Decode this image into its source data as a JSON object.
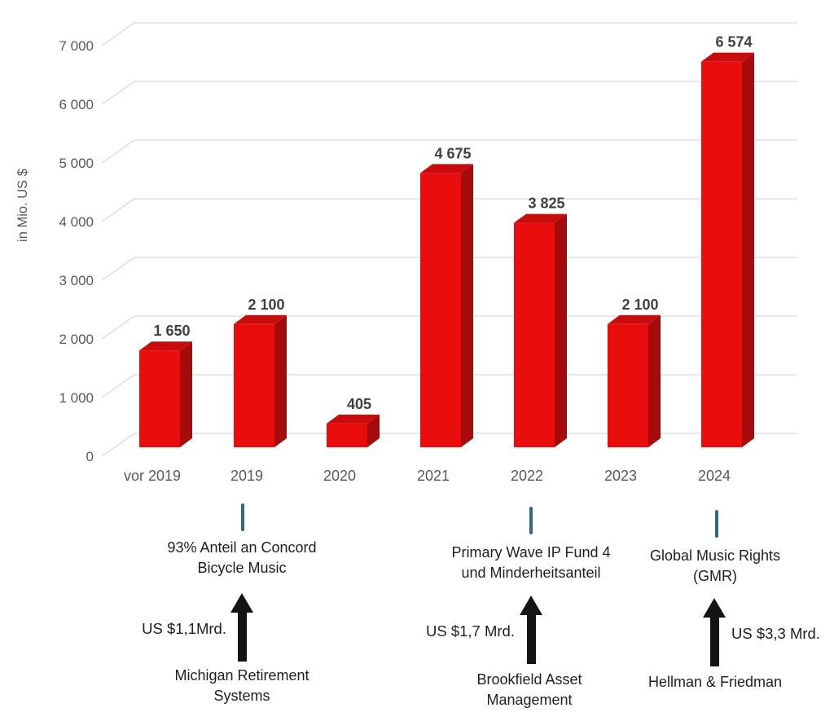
{
  "chart_data": {
    "type": "bar",
    "style": "3d",
    "title": "",
    "xlabel": "",
    "ylabel": "in Mio. US $",
    "categories": [
      "vor 2019",
      "2019",
      "2020",
      "2021",
      "2022",
      "2023",
      "2024"
    ],
    "values": [
      1650,
      2100,
      405,
      4675,
      3825,
      2100,
      6574
    ],
    "value_labels": [
      "1 650",
      "2 100",
      "405",
      "4 675",
      "3 825",
      "2 100",
      "6 574"
    ],
    "ylim": [
      0,
      7000
    ],
    "ytick_values": [
      0,
      1000,
      2000,
      3000,
      4000,
      5000,
      6000,
      7000
    ],
    "ytick_labels": [
      "0",
      "1 000",
      "2 000",
      "3 000",
      "4 000",
      "5 000",
      "6 000",
      "7 000"
    ],
    "grid": true,
    "legend": false,
    "colors": {
      "bar_front": "#EA0D0D",
      "bar_side": "#A50B0B",
      "bar_top": "#C80C0C",
      "gridline": "#D9D9D9",
      "axis_text": "#595959",
      "value_label": "#3F3F3F"
    }
  },
  "annotations": [
    {
      "year": "2019",
      "deal_lines": [
        "93% Anteil an Concord",
        "Bicycle Music"
      ],
      "amount": "US $1,1Mrd.",
      "amount_side": "left",
      "buyer_lines": [
        "Michigan Retirement",
        "Systems"
      ]
    },
    {
      "year": "2022",
      "deal_lines": [
        "Primary Wave IP Fund 4",
        "und Minderheitsanteil"
      ],
      "amount": "US $1,7 Mrd.",
      "amount_side": "left",
      "buyer_lines": [
        "Brookfield Asset",
        "Management"
      ]
    },
    {
      "year": "2024",
      "deal_lines": [
        "Global Music Rights",
        "(GMR)"
      ],
      "amount": "US $3,3 Mrd.",
      "amount_side": "right",
      "buyer_lines": [
        "Hellman & Friedman"
      ]
    }
  ],
  "colors": {
    "annotation_tick": "#33678A",
    "arrow": "#141414",
    "annotation_text": "#1F1F1F"
  }
}
